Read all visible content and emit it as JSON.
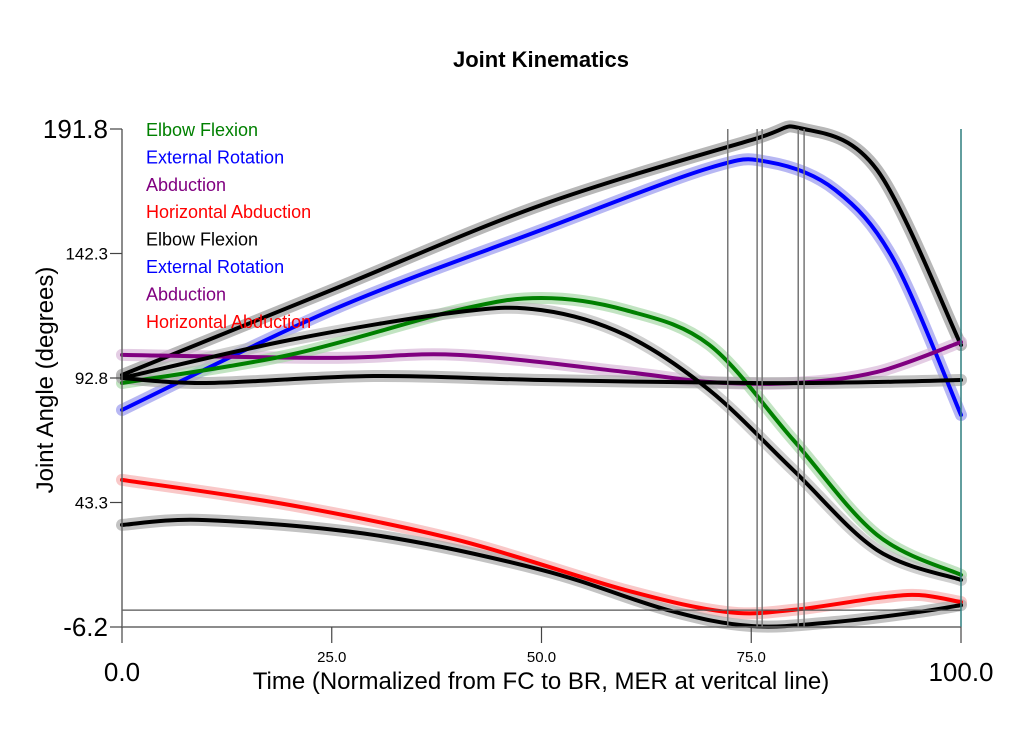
{
  "chart_data": {
    "type": "line",
    "title": "Joint Kinematics",
    "xlabel": "Time (Normalized from FC to BR, MER at veritcal line)",
    "ylabel": "Joint Angle (degrees)",
    "xlim": [
      0,
      100
    ],
    "ylim": [
      -6.2,
      191.8
    ],
    "xticks": [
      {
        "v": 0,
        "label": "0.0",
        "big": true
      },
      {
        "v": 25,
        "label": "25.0"
      },
      {
        "v": 50,
        "label": "50.0"
      },
      {
        "v": 75,
        "label": "75.0"
      },
      {
        "v": 100,
        "label": "100.0",
        "big": true
      }
    ],
    "yticks": [
      {
        "v": 191.8,
        "label": "191.8",
        "big": true
      },
      {
        "v": 142.3,
        "label": "142.3"
      },
      {
        "v": 92.8,
        "label": "92.8"
      },
      {
        "v": 43.3,
        "label": "43.3"
      },
      {
        "v": -6.2,
        "label": "-6.2",
        "big": true
      }
    ],
    "grid": false,
    "legend_placement": "top-left",
    "legend": [
      {
        "label": "Elbow Flexion",
        "color": "#008000"
      },
      {
        "label": "External Rotation",
        "color": "#0000ff"
      },
      {
        "label": "Abduction",
        "color": "#800080"
      },
      {
        "label": "Horizontal Abduction",
        "color": "#ff0000"
      },
      {
        "label": "Elbow Flexion",
        "color": "#000000"
      },
      {
        "label": "External Rotation",
        "color": "#0000ff"
      },
      {
        "label": "Abduction",
        "color": "#800080"
      },
      {
        "label": "Horizontal Abduction",
        "color": "#ff0000"
      }
    ],
    "vertical_lines": [
      72.2,
      75.7,
      76.3,
      80.6,
      81.3
    ],
    "horizontal_line": 0.5,
    "series": [
      {
        "color": "#000000",
        "band": "#999999",
        "x": [
          0,
          25,
          50,
          75,
          81,
          90,
          100
        ],
        "y": [
          94,
          127.8,
          161.6,
          187.4,
          192,
          175.5,
          105.9
        ]
      },
      {
        "color": "#0000ff",
        "band": "#9999ee",
        "x": [
          0,
          25,
          50,
          70,
          77,
          85,
          92,
          100
        ],
        "y": [
          80.1,
          119.8,
          151.7,
          176.3,
          178.7,
          167.6,
          139.7,
          78.1
        ]
      },
      {
        "color": "#800080",
        "band": "#d8b8d8",
        "x": [
          0,
          25,
          40,
          60,
          70,
          80,
          90,
          100
        ],
        "y": [
          102,
          100.8,
          102,
          95.2,
          91.2,
          90.8,
          95.2,
          107.1
        ]
      },
      {
        "color": "#008000",
        "band": "#a8d8a8",
        "x": [
          0,
          20,
          40,
          50,
          60,
          70,
          80,
          90,
          100
        ],
        "y": [
          90.8,
          102,
          119.8,
          124.6,
          119.8,
          106,
          68.2,
          30.4,
          14.5
        ]
      },
      {
        "color": "#000000",
        "band": "#bbbbbb",
        "x": [
          0,
          20,
          40,
          50,
          60,
          70,
          80,
          90,
          100
        ],
        "y": [
          92.8,
          107.9,
          119,
          119.8,
          109.9,
          88,
          56.2,
          24.4,
          12.5
        ]
      },
      {
        "color": "#000000",
        "band": "#aaaaaa",
        "x": [
          0,
          10,
          30,
          50,
          75,
          90,
          100
        ],
        "y": [
          92.8,
          90.8,
          93.6,
          92,
          90.8,
          91.2,
          92
        ]
      },
      {
        "color": "#ff0000",
        "band": "#f7b0b0",
        "x": [
          0,
          20,
          40,
          60,
          72,
          80,
          90,
          95,
          100
        ],
        "y": [
          52.3,
          42.3,
          28.4,
          8.5,
          -0.2,
          0.6,
          5.3,
          6.5,
          3.7
        ]
      },
      {
        "color": "#000000",
        "band": "#aaaaaa",
        "x": [
          0,
          10,
          30,
          50,
          65,
          75,
          85,
          95,
          100
        ],
        "y": [
          34.4,
          36.3,
          30.4,
          16.5,
          0.6,
          -5.8,
          -4.2,
          -0.2,
          2.5
        ]
      }
    ]
  }
}
